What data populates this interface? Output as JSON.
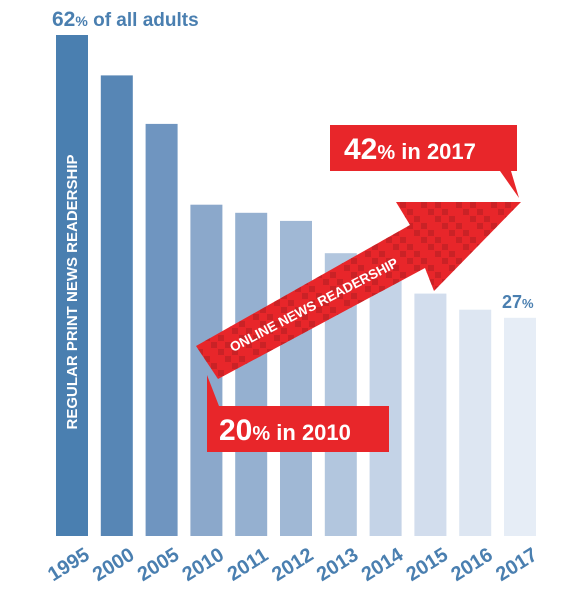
{
  "chart_data": {
    "type": "bar",
    "categories": [
      "1995",
      "2000",
      "2005",
      "2010",
      "2011",
      "2012",
      "2013",
      "2014",
      "2015",
      "2016",
      "2017"
    ],
    "series": [
      {
        "name": "REGULAR PRINT NEWS READERSHIP",
        "values": [
          62,
          57,
          51,
          41,
          40,
          39,
          35,
          32,
          30,
          28,
          27
        ]
      },
      {
        "name": "ONLINE NEWS READERSHIP",
        "values": [
          20,
          42
        ],
        "x": [
          "2010",
          "2017"
        ]
      }
    ],
    "ylim": [
      0,
      62
    ],
    "grid": false,
    "annotations": {
      "top_value": "62",
      "top_unit": "%",
      "top_suffix": " of all adults",
      "last_value": "27",
      "last_unit": "%",
      "online_start_value": "20",
      "online_start_unit": "%",
      "online_start_suffix": " in 2010",
      "online_end_value": "42",
      "online_end_unit": "%",
      "online_end_suffix": " in 2017"
    },
    "colors": {
      "bar_gradient": [
        "#4a7fb0",
        "#5786b5",
        "#6f95c0",
        "#8ba8cb",
        "#95b0d0",
        "#a0b8d5",
        "#b2c6de",
        "#c4d3e7",
        "#d2dded",
        "#dde6f2",
        "#e6edf6"
      ],
      "print_label": "#ffffff",
      "print_text": "#4a7fb0",
      "online_red": "#e8262a",
      "online_dark_red": "#b01f23",
      "year_label": "#4a7fb0"
    }
  }
}
